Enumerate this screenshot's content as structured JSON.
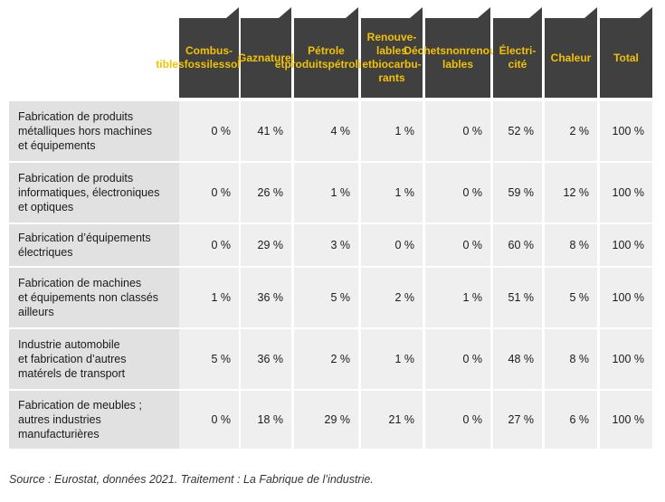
{
  "chart_data": {
    "type": "table",
    "columns": [
      "Combus-\ntibles\nfossiles\nsolides",
      "Gaz\nnaturel",
      "Pétrole et\nproduits\npétroliers",
      "Renouve-\nlables et\nbiocarbu-\nrants",
      "Déchets\nnon\nrenouve-\nlables",
      "Électri-\ncité",
      "Chaleur",
      "Total"
    ],
    "rows": [
      {
        "label": "Fabrication de produits\nmétalliques hors machines\net équipements",
        "values": [
          "0 %",
          "41 %",
          "4 %",
          "1 %",
          "0 %",
          "52 %",
          "2 %",
          "100 %"
        ]
      },
      {
        "label": "Fabrication de produits\ninformatiques, électroniques\net optiques",
        "values": [
          "0 %",
          "26 %",
          "1 %",
          "1 %",
          "0 %",
          "59 %",
          "12 %",
          "100 %"
        ]
      },
      {
        "label": "Fabrication d’équipements\nélectriques",
        "values": [
          "0 %",
          "29 %",
          "3 %",
          "0 %",
          "0 %",
          "60 %",
          "8 %",
          "100 %"
        ]
      },
      {
        "label": "Fabrication de machines\net équipements non classés\nailleurs",
        "values": [
          "1 %",
          "36 %",
          "5 %",
          "2 %",
          "1 %",
          "51 %",
          "5 %",
          "100 %"
        ]
      },
      {
        "label": "Industrie automobile\net fabrication d’autres\nmatérels de transport",
        "values": [
          "5 %",
          "36 %",
          "2 %",
          "1 %",
          "0 %",
          "48 %",
          "8 %",
          "100 %"
        ]
      },
      {
        "label": "Fabrication de meubles ;\nautres industries\nmanufacturières",
        "values": [
          "0 %",
          "18 %",
          "29 %",
          "21 %",
          "0 %",
          "27 %",
          "6 %",
          "100 %"
        ]
      }
    ],
    "colors": {
      "header_bg": "#404040",
      "header_text": "#f2c200",
      "label_bg": "#e1e1e1",
      "cell_bg": "#efefef"
    }
  },
  "source": "Source : Eurostat, données 2021. Traitement : La Fabrique de l’industrie."
}
